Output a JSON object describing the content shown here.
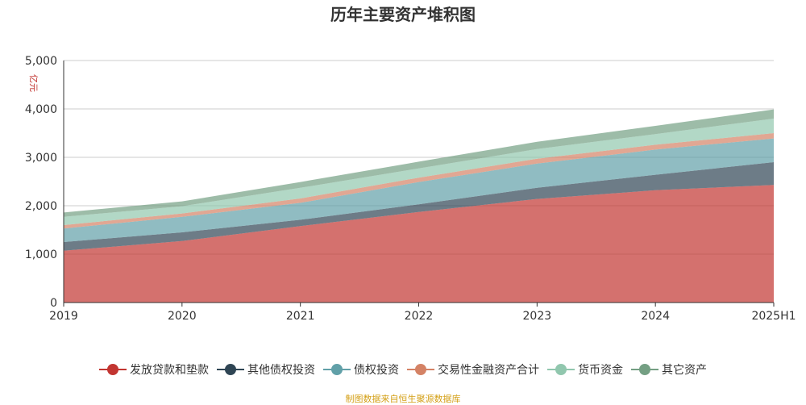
{
  "chart_data": {
    "type": "area",
    "stacked": true,
    "title": "历年主要资产堆积图",
    "ylabel": "亿元",
    "xlabel": "",
    "ylim": [
      0,
      5000
    ],
    "yticks": [
      "0",
      "1,000",
      "2,000",
      "3,000",
      "4,000",
      "5,000"
    ],
    "categories": [
      "2019",
      "2020",
      "2021",
      "2022",
      "2023",
      "2024",
      "2025H1"
    ],
    "grid": true,
    "legend_position": "bottom",
    "series": [
      {
        "name": "发放贷款和垫款",
        "color": "#c23531",
        "values": [
          1070,
          1270,
          1580,
          1870,
          2140,
          2320,
          2430
        ]
      },
      {
        "name": "其他债权投资",
        "color": "#2f4554",
        "values": [
          180,
          180,
          130,
          160,
          230,
          320,
          470
        ]
      },
      {
        "name": "债权投资",
        "color": "#61a0a8",
        "values": [
          280,
          320,
          350,
          460,
          500,
          520,
          490
        ]
      },
      {
        "name": "交易性金融资产合计",
        "color": "#d48265",
        "values": [
          70,
          70,
          90,
          90,
          100,
          100,
          110
        ]
      },
      {
        "name": "货币资金",
        "color": "#91c7ae",
        "values": [
          170,
          150,
          220,
          190,
          200,
          220,
          300
        ]
      },
      {
        "name": "其它资产",
        "color": "#749f83",
        "values": [
          90,
          100,
          120,
          140,
          150,
          170,
          190
        ]
      }
    ]
  },
  "footer": "制图数据来自恒生聚源数据库"
}
